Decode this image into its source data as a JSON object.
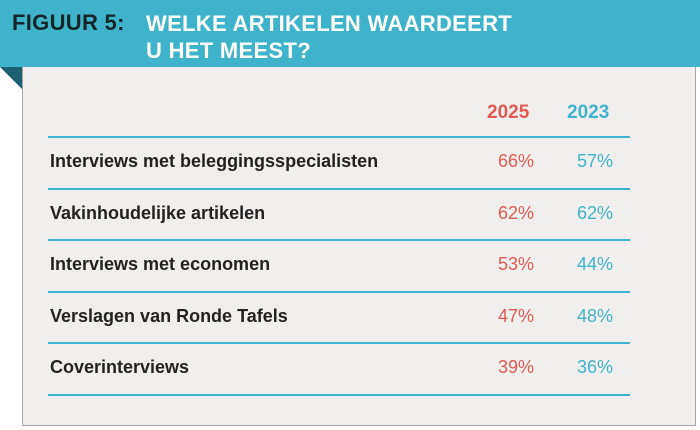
{
  "header": {
    "figure_label": "FIGUUR 5:",
    "title_line1": "WELKE ARTIKELEN WAARDEERT",
    "title_line2": "U HET MEEST?"
  },
  "colors": {
    "banner": "#3fb3cb",
    "accent_2025": "#e15b52",
    "accent_2023": "#3fb3cb"
  },
  "chart_data": {
    "type": "table",
    "title": "WELKE ARTIKELEN WAARDEERT U HET MEEST?",
    "columns": [
      "2025",
      "2023"
    ],
    "categories": [
      "Interviews met beleggingsspecialisten",
      "Vakinhoudelijke artikelen",
      "Interviews met economen",
      "Verslagen van Ronde Tafels",
      "Coverinterviews"
    ],
    "series": [
      {
        "name": "2025",
        "values": [
          66,
          62,
          53,
          47,
          39
        ]
      },
      {
        "name": "2023",
        "values": [
          57,
          62,
          44,
          48,
          36
        ]
      }
    ],
    "value_labels": {
      "2025": [
        "66%",
        "62%",
        "53%",
        "47%",
        "39%"
      ],
      "2023": [
        "57%",
        "62%",
        "44%",
        "48%",
        "36%"
      ]
    },
    "unit": "%"
  }
}
